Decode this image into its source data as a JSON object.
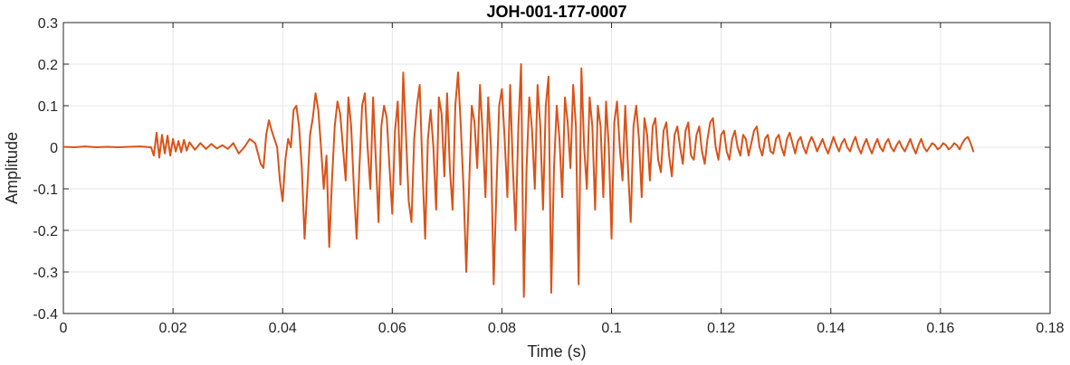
{
  "chart_data": {
    "type": "line",
    "title": "JOH-001-177-0007",
    "xlabel": "Time (s)",
    "ylabel": "Amplitude",
    "xlim": [
      0,
      0.18
    ],
    "ylim": [
      -0.4,
      0.3
    ],
    "xticks": [
      0,
      0.02,
      0.04,
      0.06,
      0.08,
      0.1,
      0.12,
      0.14,
      0.16,
      0.18
    ],
    "xtick_labels": [
      "0",
      "0.02",
      "0.04",
      "0.06",
      "0.08",
      "0.1",
      "0.12",
      "0.14",
      "0.16",
      "0.18"
    ],
    "yticks": [
      -0.4,
      -0.3,
      -0.2,
      -0.1,
      0,
      0.1,
      0.2,
      0.3
    ],
    "ytick_labels": [
      "-0.4",
      "-0.3",
      "-0.2",
      "-0.1",
      "0",
      "0.1",
      "0.2",
      "0.3"
    ],
    "grid": true,
    "colors": {
      "line": "#D95319",
      "grid": "#E6E6E6",
      "axis": "#262626"
    },
    "series": [
      {
        "values": [
          [
            0.0,
            0.001
          ],
          [
            0.002,
            0.0
          ],
          [
            0.004,
            0.002
          ],
          [
            0.006,
            0.0
          ],
          [
            0.008,
            0.001
          ],
          [
            0.01,
            0.0
          ],
          [
            0.012,
            0.001
          ],
          [
            0.014,
            0.002
          ],
          [
            0.016,
            0.0
          ],
          [
            0.0165,
            -0.02
          ],
          [
            0.017,
            0.035
          ],
          [
            0.0175,
            -0.025
          ],
          [
            0.018,
            0.03
          ],
          [
            0.0185,
            -0.015
          ],
          [
            0.019,
            0.028
          ],
          [
            0.0195,
            -0.02
          ],
          [
            0.02,
            0.02
          ],
          [
            0.0205,
            -0.01
          ],
          [
            0.021,
            0.015
          ],
          [
            0.0215,
            -0.012
          ],
          [
            0.022,
            0.018
          ],
          [
            0.0225,
            -0.008
          ],
          [
            0.023,
            0.012
          ],
          [
            0.024,
            -0.006
          ],
          [
            0.025,
            0.01
          ],
          [
            0.026,
            -0.004
          ],
          [
            0.027,
            0.008
          ],
          [
            0.028,
            -0.003
          ],
          [
            0.029,
            0.005
          ],
          [
            0.03,
            -0.004
          ],
          [
            0.031,
            0.01
          ],
          [
            0.032,
            -0.015
          ],
          [
            0.033,
            0.0
          ],
          [
            0.034,
            0.02
          ],
          [
            0.035,
            0.01
          ],
          [
            0.036,
            -0.04
          ],
          [
            0.0365,
            -0.05
          ],
          [
            0.037,
            0.03
          ],
          [
            0.0375,
            0.065
          ],
          [
            0.038,
            0.04
          ],
          [
            0.039,
            0.0
          ],
          [
            0.0395,
            -0.08
          ],
          [
            0.04,
            -0.13
          ],
          [
            0.0405,
            -0.03
          ],
          [
            0.041,
            0.02
          ],
          [
            0.0415,
            0.0
          ],
          [
            0.042,
            0.09
          ],
          [
            0.0425,
            0.1
          ],
          [
            0.043,
            0.05
          ],
          [
            0.0435,
            -0.05
          ],
          [
            0.044,
            -0.22
          ],
          [
            0.0445,
            -0.1
          ],
          [
            0.045,
            0.03
          ],
          [
            0.0455,
            0.07
          ],
          [
            0.046,
            0.13
          ],
          [
            0.0465,
            0.09
          ],
          [
            0.047,
            0.0
          ],
          [
            0.0475,
            -0.1
          ],
          [
            0.048,
            -0.02
          ],
          [
            0.0485,
            -0.24
          ],
          [
            0.049,
            -0.08
          ],
          [
            0.0495,
            0.05
          ],
          [
            0.05,
            0.11
          ],
          [
            0.0505,
            0.08
          ],
          [
            0.051,
            0.0
          ],
          [
            0.0515,
            -0.08
          ],
          [
            0.052,
            0.12
          ],
          [
            0.0525,
            0.05
          ],
          [
            0.053,
            -0.1
          ],
          [
            0.0535,
            -0.22
          ],
          [
            0.054,
            -0.05
          ],
          [
            0.0545,
            0.1
          ],
          [
            0.055,
            0.13
          ],
          [
            0.0555,
            0.0
          ],
          [
            0.056,
            -0.1
          ],
          [
            0.0565,
            0.12
          ],
          [
            0.057,
            -0.03
          ],
          [
            0.0575,
            -0.18
          ],
          [
            0.058,
            0.05
          ],
          [
            0.0585,
            0.1
          ],
          [
            0.059,
            0.07
          ],
          [
            0.0595,
            -0.05
          ],
          [
            0.06,
            -0.16
          ],
          [
            0.0605,
            0.04
          ],
          [
            0.061,
            0.11
          ],
          [
            0.0615,
            -0.09
          ],
          [
            0.062,
            0.18
          ],
          [
            0.0625,
            0.03
          ],
          [
            0.063,
            -0.13
          ],
          [
            0.0635,
            -0.18
          ],
          [
            0.064,
            0.02
          ],
          [
            0.0645,
            0.1
          ],
          [
            0.065,
            0.15
          ],
          [
            0.0655,
            -0.05
          ],
          [
            0.066,
            -0.22
          ],
          [
            0.0665,
            0.02
          ],
          [
            0.067,
            0.09
          ],
          [
            0.0675,
            0.0
          ],
          [
            0.068,
            -0.15
          ],
          [
            0.0685,
            0.12
          ],
          [
            0.069,
            0.08
          ],
          [
            0.0695,
            -0.07
          ],
          [
            0.07,
            0.13
          ],
          [
            0.0705,
            -0.05
          ],
          [
            0.071,
            -0.15
          ],
          [
            0.0715,
            0.1
          ],
          [
            0.072,
            0.18
          ],
          [
            0.0725,
            0.05
          ],
          [
            0.073,
            -0.1
          ],
          [
            0.0735,
            -0.3
          ],
          [
            0.074,
            -0.1
          ],
          [
            0.0745,
            0.1
          ],
          [
            0.075,
            0.06
          ],
          [
            0.0755,
            -0.05
          ],
          [
            0.076,
            0.15
          ],
          [
            0.0765,
            0.03
          ],
          [
            0.077,
            -0.12
          ],
          [
            0.0775,
            0.12
          ],
          [
            0.078,
            0.0
          ],
          [
            0.0785,
            -0.33
          ],
          [
            0.079,
            -0.1
          ],
          [
            0.0795,
            0.1
          ],
          [
            0.08,
            0.14
          ],
          [
            0.0805,
            0.02
          ],
          [
            0.081,
            -0.12
          ],
          [
            0.0815,
            0.15
          ],
          [
            0.082,
            -0.05
          ],
          [
            0.0825,
            -0.2
          ],
          [
            0.083,
            0.05
          ],
          [
            0.0835,
            0.2
          ],
          [
            0.084,
            -0.36
          ],
          [
            0.0845,
            -0.05
          ],
          [
            0.085,
            0.12
          ],
          [
            0.0855,
            0.04
          ],
          [
            0.086,
            -0.1
          ],
          [
            0.0865,
            0.15
          ],
          [
            0.087,
            0.05
          ],
          [
            0.0875,
            -0.15
          ],
          [
            0.088,
            0.1
          ],
          [
            0.0885,
            0.17
          ],
          [
            0.089,
            -0.35
          ],
          [
            0.0895,
            -0.05
          ],
          [
            0.09,
            0.1
          ],
          [
            0.0905,
            0.02
          ],
          [
            0.091,
            -0.12
          ],
          [
            0.0915,
            0.12
          ],
          [
            0.092,
            0.06
          ],
          [
            0.0925,
            -0.05
          ],
          [
            0.093,
            0.15
          ],
          [
            0.0935,
            0.05
          ],
          [
            0.094,
            -0.33
          ],
          [
            0.0945,
            0.19
          ],
          [
            0.095,
            0.0
          ],
          [
            0.0955,
            -0.1
          ],
          [
            0.096,
            0.12
          ],
          [
            0.0965,
            0.05
          ],
          [
            0.097,
            -0.15
          ],
          [
            0.0975,
            0.1
          ],
          [
            0.098,
            0.05
          ],
          [
            0.0985,
            -0.12
          ],
          [
            0.099,
            0.11
          ],
          [
            0.0995,
            0.0
          ],
          [
            0.1,
            -0.22
          ],
          [
            0.1005,
            0.06
          ],
          [
            0.101,
            0.11
          ],
          [
            0.1015,
            0.0
          ],
          [
            0.102,
            -0.08
          ],
          [
            0.1025,
            0.1
          ],
          [
            0.103,
            -0.05
          ],
          [
            0.1035,
            -0.18
          ],
          [
            0.104,
            0.05
          ],
          [
            0.1045,
            0.1
          ],
          [
            0.105,
            0.02
          ],
          [
            0.1055,
            -0.12
          ],
          [
            0.106,
            0.07
          ],
          [
            0.1065,
            0.03
          ],
          [
            0.107,
            -0.08
          ],
          [
            0.1075,
            0.05
          ],
          [
            0.108,
            0.07
          ],
          [
            0.1085,
            -0.03
          ],
          [
            0.109,
            -0.06
          ],
          [
            0.1095,
            0.04
          ],
          [
            0.11,
            0.06
          ],
          [
            0.1105,
            -0.02
          ],
          [
            0.111,
            -0.07
          ],
          [
            0.1115,
            0.03
          ],
          [
            0.112,
            0.05
          ],
          [
            0.1125,
            0.0
          ],
          [
            0.113,
            -0.04
          ],
          [
            0.1135,
            0.04
          ],
          [
            0.114,
            0.06
          ],
          [
            0.1145,
            -0.02
          ],
          [
            0.115,
            -0.03
          ],
          [
            0.1155,
            0.03
          ],
          [
            0.116,
            0.05
          ],
          [
            0.1165,
            -0.01
          ],
          [
            0.117,
            -0.04
          ],
          [
            0.1175,
            0.02
          ],
          [
            0.118,
            0.06
          ],
          [
            0.1185,
            0.07
          ],
          [
            0.119,
            0.0
          ],
          [
            0.1195,
            -0.03
          ],
          [
            0.12,
            0.03
          ],
          [
            0.1205,
            0.04
          ],
          [
            0.121,
            -0.01
          ],
          [
            0.1215,
            -0.03
          ],
          [
            0.122,
            0.02
          ],
          [
            0.1225,
            0.04
          ],
          [
            0.123,
            0.0
          ],
          [
            0.1235,
            -0.02
          ],
          [
            0.124,
            0.03
          ],
          [
            0.1245,
            0.02
          ],
          [
            0.125,
            -0.02
          ],
          [
            0.1255,
            0.01
          ],
          [
            0.126,
            0.04
          ],
          [
            0.1265,
            0.05
          ],
          [
            0.127,
            0.0
          ],
          [
            0.1275,
            -0.02
          ],
          [
            0.128,
            0.02
          ],
          [
            0.1285,
            0.03
          ],
          [
            0.129,
            -0.01
          ],
          [
            0.1295,
            -0.015
          ],
          [
            0.13,
            0.02
          ],
          [
            0.1305,
            0.03
          ],
          [
            0.131,
            0.0
          ],
          [
            0.1315,
            -0.02
          ],
          [
            0.132,
            0.02
          ],
          [
            0.1325,
            0.035
          ],
          [
            0.133,
            0.01
          ],
          [
            0.1335,
            -0.015
          ],
          [
            0.134,
            0.015
          ],
          [
            0.1345,
            0.025
          ],
          [
            0.135,
            0.0
          ],
          [
            0.1355,
            -0.015
          ],
          [
            0.136,
            0.01
          ],
          [
            0.1365,
            0.025
          ],
          [
            0.137,
            0.01
          ],
          [
            0.1375,
            -0.01
          ],
          [
            0.138,
            0.005
          ],
          [
            0.1385,
            0.02
          ],
          [
            0.139,
            0.0
          ],
          [
            0.1395,
            -0.015
          ],
          [
            0.14,
            0.005
          ],
          [
            0.1405,
            0.025
          ],
          [
            0.141,
            0.005
          ],
          [
            0.1415,
            -0.01
          ],
          [
            0.142,
            0.01
          ],
          [
            0.1425,
            0.02
          ],
          [
            0.143,
            0.0
          ],
          [
            0.1435,
            -0.01
          ],
          [
            0.144,
            0.01
          ],
          [
            0.1445,
            0.025
          ],
          [
            0.145,
            0.0
          ],
          [
            0.1455,
            -0.015
          ],
          [
            0.146,
            0.005
          ],
          [
            0.1465,
            0.02
          ],
          [
            0.147,
            0.0
          ],
          [
            0.1475,
            -0.015
          ],
          [
            0.148,
            0.005
          ],
          [
            0.1485,
            0.02
          ],
          [
            0.149,
            0.0
          ],
          [
            0.1495,
            -0.01
          ],
          [
            0.15,
            0.01
          ],
          [
            0.1505,
            0.02
          ],
          [
            0.151,
            0.0
          ],
          [
            0.1515,
            -0.01
          ],
          [
            0.152,
            0.005
          ],
          [
            0.1525,
            0.015
          ],
          [
            0.153,
            0.0
          ],
          [
            0.1535,
            -0.01
          ],
          [
            0.154,
            0.005
          ],
          [
            0.1545,
            0.02
          ],
          [
            0.155,
            0.0
          ],
          [
            0.1555,
            -0.015
          ],
          [
            0.156,
            0.005
          ],
          [
            0.1565,
            0.02
          ],
          [
            0.157,
            0.0
          ],
          [
            0.1575,
            -0.01
          ],
          [
            0.158,
            0.0
          ],
          [
            0.1585,
            0.01
          ],
          [
            0.159,
            0.005
          ],
          [
            0.1595,
            -0.005
          ],
          [
            0.16,
            0.0
          ],
          [
            0.1605,
            0.01
          ],
          [
            0.161,
            0.005
          ],
          [
            0.1615,
            -0.005
          ],
          [
            0.162,
            0.0
          ],
          [
            0.1625,
            0.01
          ],
          [
            0.163,
            0.005
          ],
          [
            0.1635,
            -0.005
          ],
          [
            0.164,
            0.01
          ],
          [
            0.1645,
            0.02
          ],
          [
            0.165,
            0.025
          ],
          [
            0.1655,
            0.01
          ],
          [
            0.166,
            -0.01
          ]
        ]
      }
    ]
  }
}
